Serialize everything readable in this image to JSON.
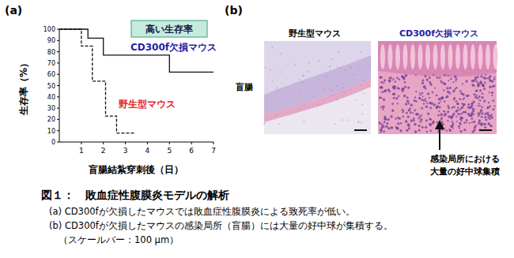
{
  "chart_data": {
    "type": "line",
    "title": "(a)",
    "x_label": "盲腸結紮穿刺後（日）",
    "y_label": "生存率（%）",
    "annotations": [
      "高い生存率"
    ],
    "xlim": [
      0,
      7
    ],
    "xticks": [
      1,
      2,
      3,
      4,
      5,
      6,
      7
    ],
    "ylim": [
      0,
      100
    ],
    "yticks": [
      0,
      10,
      20,
      30,
      40,
      50,
      60,
      70,
      80,
      90,
      100
    ],
    "grid": false,
    "series": [
      {
        "name": "CD300f欠損マウス",
        "color": "#2323a8",
        "line_style": "solid",
        "x": [
          0,
          1.3,
          2.0,
          5.0,
          7.0
        ],
        "values": [
          100,
          92,
          77,
          62,
          62
        ]
      },
      {
        "name": "野生型マウス",
        "color": "#e2242b",
        "line_style": "dashed",
        "x": [
          0,
          1.0,
          1.5,
          2.1,
          2.6,
          3.4
        ],
        "values": [
          100,
          85,
          54,
          23,
          8,
          8
        ]
      }
    ]
  },
  "panel_b": {
    "label": "(b)",
    "columns": [
      "野生型マウス",
      "CD300f欠損マウス"
    ],
    "row": "盲腸",
    "annotation": [
      "感染局所における",
      "大量の好中球集積"
    ]
  },
  "caption": {
    "title": "図１：　敗血症性腹膜炎モデルの解析",
    "lines": [
      "(a) CD300fが欠損したマウスでは敗血症性腹膜炎による致死率が低い。",
      "(b) CD300fが欠損したマウスの感染局所（盲腸）には大量の好中球が集積する。",
      "（スケールバー：100 µm）"
    ]
  }
}
